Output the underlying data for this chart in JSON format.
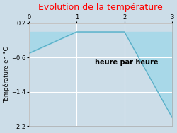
{
  "title": "Evolution de la température",
  "title_color": "#ff0000",
  "xlabel": "heure par heure",
  "ylabel": "Température en °C",
  "background_color": "#ccdde8",
  "plot_bg_color": "#ccdde8",
  "x": [
    0,
    1,
    2,
    3
  ],
  "y": [
    -0.5,
    0.0,
    0.0,
    -2.0
  ],
  "fill_color": "#a8d8e8",
  "fill_alpha": 1.0,
  "line_color": "#5ab0c8",
  "line_width": 1.0,
  "xlim": [
    0,
    3
  ],
  "ylim": [
    -2.2,
    0.2
  ],
  "yticks": [
    0.2,
    -0.6,
    -1.4,
    -2.2
  ],
  "xticks": [
    0,
    1,
    2,
    3
  ],
  "grid_color": "#ffffff",
  "xlabel_ax": 0.68,
  "xlabel_ay": 0.62,
  "title_fontsize": 9,
  "ylabel_fontsize": 6,
  "tick_fontsize": 6
}
